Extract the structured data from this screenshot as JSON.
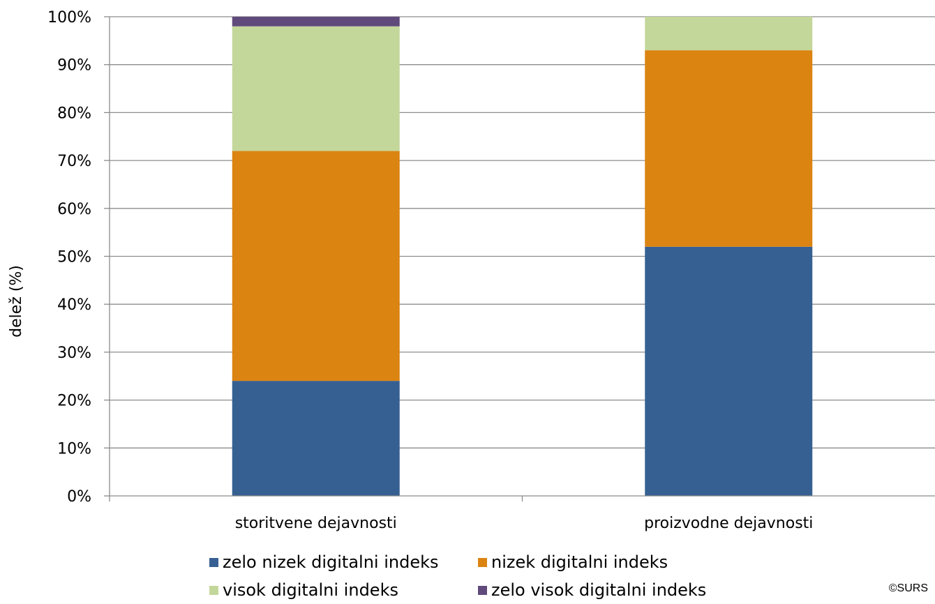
{
  "chart_data": {
    "type": "bar",
    "stacked": true,
    "normalized_percent": true,
    "categories": [
      "storitvene dejavnosti",
      "proizvodne dejavnosti"
    ],
    "series": [
      {
        "name": "zelo nizek digitalni indeks",
        "values": [
          24,
          52
        ],
        "color": "#376092"
      },
      {
        "name": "nizek digitalni indeks",
        "values": [
          48,
          41
        ],
        "color": "#DB8412"
      },
      {
        "name": "visok digitalni indeks",
        "values": [
          26,
          7
        ],
        "color": "#C4D79B"
      },
      {
        "name": "zelo visok digitalni indeks",
        "values": [
          2,
          0
        ],
        "color": "#604A7B"
      }
    ],
    "ylabel": "delež (%)",
    "xlabel": "",
    "ylim": [
      0,
      100
    ],
    "yticks": [
      "0%",
      "10%",
      "20%",
      "30%",
      "40%",
      "50%",
      "60%",
      "70%",
      "80%",
      "90%",
      "100%"
    ],
    "grid": true,
    "legend": "bottom"
  },
  "source": "©SURS"
}
